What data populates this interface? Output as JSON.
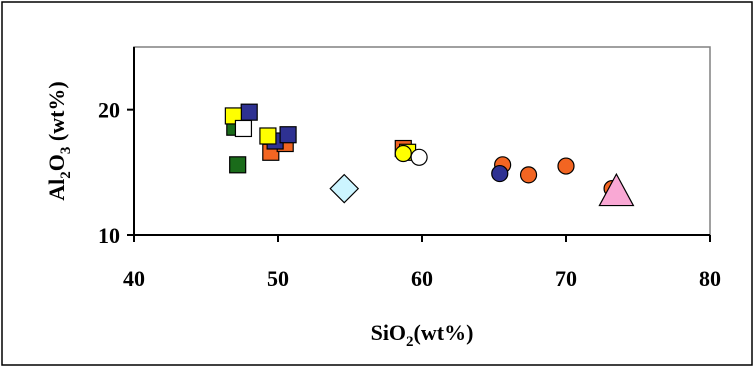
{
  "chart_data": {
    "type": "scatter",
    "title": "",
    "xlabel": {
      "main": "SiO",
      "sub": "2",
      "tail": "(wt%)"
    },
    "ylabel": {
      "main": "Al",
      "sub1": "2",
      "mid": "O",
      "sub2": "3",
      "tail": " (wt%)"
    },
    "xlim": [
      40,
      80
    ],
    "ylim": [
      10,
      25
    ],
    "xticks": [
      "40",
      "50",
      "60",
      "70",
      "80"
    ],
    "yticks": [
      "10",
      "20"
    ],
    "grid": false,
    "legend": "none",
    "plot_background": "#ffffff",
    "series": [
      {
        "marker": "square",
        "color": "#1a6b1a",
        "points": [
          [
            47.0,
            18.6
          ],
          [
            47.2,
            15.6
          ]
        ]
      },
      {
        "marker": "square",
        "color": "#f26522",
        "points": [
          [
            49.5,
            16.6
          ],
          [
            50.5,
            17.3
          ],
          [
            58.7,
            16.9
          ]
        ]
      },
      {
        "marker": "square",
        "color": "#2e3192",
        "points": [
          [
            48.0,
            19.8
          ],
          [
            49.8,
            17.5
          ],
          [
            50.7,
            18.0
          ]
        ]
      },
      {
        "marker": "square",
        "color": "#ffff00",
        "points": [
          [
            46.9,
            19.5
          ],
          [
            49.3,
            17.9
          ],
          [
            59.0,
            16.6
          ]
        ]
      },
      {
        "marker": "square",
        "color": "#ffffff",
        "points": [
          [
            47.6,
            18.5
          ]
        ]
      },
      {
        "marker": "circle",
        "color": "#f26522",
        "points": [
          [
            65.6,
            15.6
          ],
          [
            67.4,
            14.8
          ],
          [
            70.0,
            15.5
          ],
          [
            73.2,
            13.7
          ]
        ]
      },
      {
        "marker": "circle",
        "color": "#2e3192",
        "points": [
          [
            65.4,
            14.9
          ]
        ]
      },
      {
        "marker": "circle",
        "color": "#ffff00",
        "points": [
          [
            58.7,
            16.5
          ]
        ]
      },
      {
        "marker": "circle",
        "color": "#ffffff",
        "points": [
          [
            59.8,
            16.2
          ]
        ]
      },
      {
        "marker": "diamond",
        "color": "#ccf5ff",
        "points": [
          [
            54.6,
            13.7
          ]
        ]
      },
      {
        "marker": "triangle",
        "color": "#f9a8d4",
        "points": [
          [
            73.5,
            13.5
          ]
        ]
      }
    ]
  }
}
